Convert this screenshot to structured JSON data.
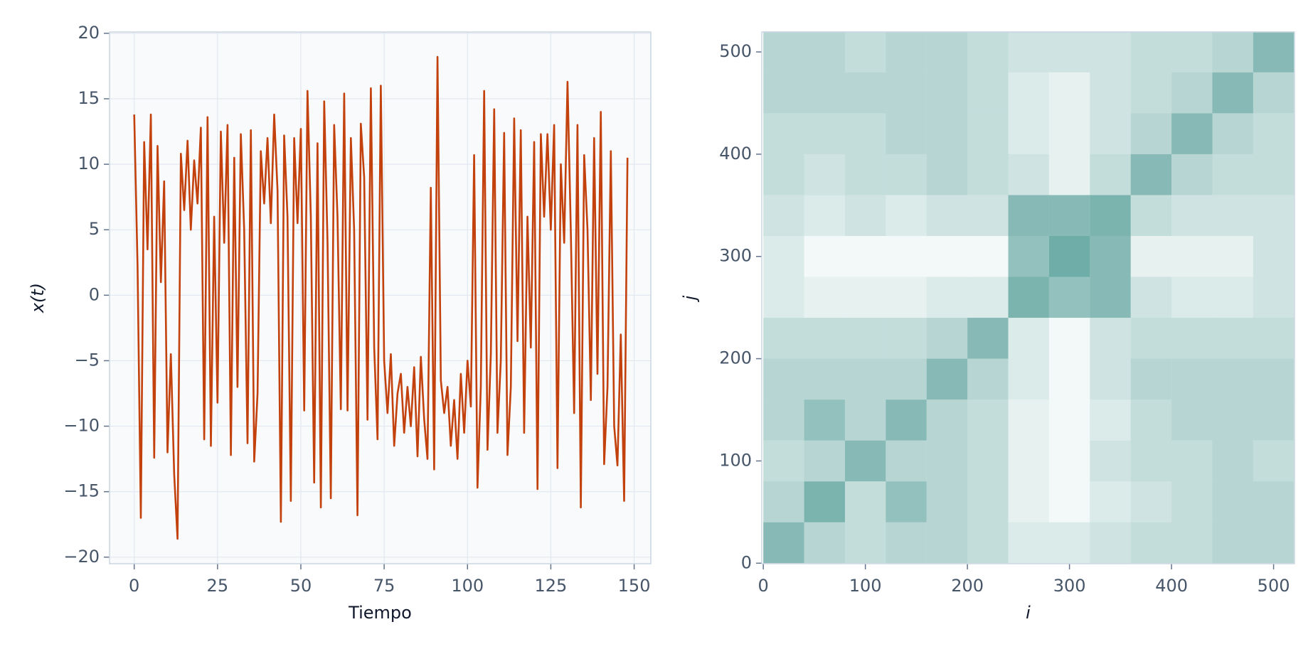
{
  "chart_data": [
    {
      "type": "line",
      "xlabel": "Tiempo",
      "ylabel": "x(t)",
      "color": "#c2410c",
      "grid": true,
      "xlim": [
        -7.4,
        155
      ],
      "ylim": [
        -20.5,
        20.1
      ],
      "xticks": [
        0,
        25,
        50,
        75,
        100,
        125,
        150
      ],
      "yticks": [
        {
          "value": -20,
          "label": "−20"
        },
        {
          "value": -15,
          "label": "−15"
        },
        {
          "value": -10,
          "label": "−10"
        },
        {
          "value": -5,
          "label": "−5"
        },
        0,
        5,
        10,
        15,
        20
      ],
      "x": [
        0,
        1,
        2,
        3,
        4,
        5,
        6,
        7,
        8,
        9,
        10,
        11,
        12,
        13,
        14,
        15,
        16,
        17,
        18,
        19,
        20,
        21,
        22,
        23,
        24,
        25,
        26,
        27,
        28,
        29,
        30,
        31,
        32,
        33,
        34,
        35,
        36,
        37,
        38,
        39,
        40,
        41,
        42,
        43,
        44,
        45,
        46,
        47,
        48,
        49,
        50,
        51,
        52,
        53,
        54,
        55,
        56,
        57,
        58,
        59,
        60,
        61,
        62,
        63,
        64,
        65,
        66,
        67,
        68,
        69,
        70,
        71,
        72,
        73,
        74,
        75,
        76,
        77,
        78,
        79,
        80,
        81,
        82,
        83,
        84,
        85,
        86,
        87,
        88,
        89,
        90,
        91,
        92,
        93,
        94,
        95,
        96,
        97,
        98,
        99,
        100,
        101,
        102,
        103,
        104,
        105,
        106,
        107,
        108,
        109,
        110,
        111,
        112,
        113,
        114,
        115,
        116,
        117,
        118,
        119,
        120,
        121,
        122,
        123,
        124,
        125,
        126,
        127,
        128,
        129,
        130,
        131,
        132,
        133,
        134,
        135,
        136,
        137,
        138,
        139,
        140,
        141,
        142,
        143,
        144,
        145,
        146,
        147,
        148
      ],
      "values": [
        13.8,
        2.2,
        -17,
        11.7,
        3.5,
        13.8,
        -12.4,
        11.4,
        1,
        8.7,
        -12,
        -4.5,
        -13.7,
        -18.6,
        10.8,
        6.5,
        11.8,
        5,
        10.3,
        7,
        12.8,
        -11,
        13.6,
        -11.5,
        6,
        -8.2,
        12.5,
        4,
        13,
        -12.2,
        10.5,
        -7,
        12.3,
        5,
        -11.3,
        12.6,
        -12.7,
        -7.5,
        11,
        7,
        12,
        5.5,
        13.8,
        8,
        -17.3,
        12.2,
        6,
        -15.7,
        12,
        5.5,
        12.7,
        -8.8,
        15.6,
        6,
        -14.3,
        11.6,
        -16.2,
        14.8,
        4,
        -15.5,
        13,
        6,
        -8.7,
        15.4,
        -8.8,
        12,
        5,
        -16.8,
        13.1,
        9,
        -9.5,
        15.8,
        -4,
        -11,
        16,
        -5,
        -9,
        -4.5,
        -11.5,
        -7.5,
        -6,
        -10.5,
        -7,
        -10,
        -5.5,
        -12.3,
        -4.7,
        -9.5,
        -12.5,
        8.2,
        -13.3,
        18.2,
        -6.5,
        -9,
        -7,
        -11.5,
        -8,
        -12.5,
        -6,
        -10.5,
        -5,
        -8.5,
        10.7,
        -14.7,
        -7,
        15.6,
        -11.8,
        -4.5,
        14.2,
        -10.5,
        -5,
        12.4,
        -12.2,
        -7,
        13.5,
        -3.5,
        12.6,
        -10.5,
        6,
        -4,
        11.7,
        -14.8,
        12.3,
        6,
        12.3,
        5,
        13,
        -13.2,
        10,
        4,
        16.3,
        5,
        -9,
        13,
        -16.2,
        10.7,
        5,
        -8,
        12,
        -6,
        14,
        -12.9,
        -7,
        11,
        -10,
        -13,
        -3,
        -15.7,
        10.5
      ]
    },
    {
      "type": "heatmap",
      "xlabel": "i",
      "ylabel": "j",
      "color": "#0f766e",
      "xlim": [
        -1.5,
        520.5
      ],
      "ylim": [
        -0.5,
        519.5
      ],
      "xticks": [
        0,
        100,
        200,
        300,
        400,
        500
      ],
      "yticks": [
        0,
        100,
        200,
        300,
        400,
        500
      ],
      "xbins": [
        0,
        40,
        80,
        120,
        160,
        200,
        240,
        280,
        320,
        360,
        400,
        440,
        480,
        520
      ],
      "ybins": [
        0,
        40,
        80,
        120,
        160,
        200,
        240,
        280,
        320,
        360,
        400,
        440,
        480,
        520
      ],
      "values": [
        [
          0.5,
          0.3,
          0.25,
          0.3,
          0.3,
          0.25,
          0.15,
          0.15,
          0.2,
          0.25,
          0.25,
          0.3,
          0.3
        ],
        [
          0.3,
          0.55,
          0.25,
          0.45,
          0.3,
          0.25,
          0.1,
          0.05,
          0.15,
          0.2,
          0.25,
          0.3,
          0.3
        ],
        [
          0.25,
          0.3,
          0.5,
          0.3,
          0.3,
          0.25,
          0.1,
          0.05,
          0.2,
          0.25,
          0.25,
          0.3,
          0.25
        ],
        [
          0.3,
          0.45,
          0.3,
          0.5,
          0.3,
          0.25,
          0.1,
          0.05,
          0.15,
          0.25,
          0.3,
          0.3,
          0.3
        ],
        [
          0.3,
          0.3,
          0.3,
          0.3,
          0.5,
          0.3,
          0.15,
          0.05,
          0.2,
          0.3,
          0.3,
          0.3,
          0.3
        ],
        [
          0.25,
          0.25,
          0.25,
          0.25,
          0.3,
          0.5,
          0.15,
          0.05,
          0.2,
          0.25,
          0.25,
          0.25,
          0.25
        ],
        [
          0.15,
          0.1,
          0.1,
          0.1,
          0.15,
          0.15,
          0.55,
          0.45,
          0.5,
          0.2,
          0.15,
          0.15,
          0.2
        ],
        [
          0.15,
          0.05,
          0.05,
          0.05,
          0.05,
          0.05,
          0.45,
          0.6,
          0.5,
          0.1,
          0.1,
          0.1,
          0.2
        ],
        [
          0.2,
          0.15,
          0.2,
          0.15,
          0.2,
          0.2,
          0.5,
          0.5,
          0.55,
          0.25,
          0.2,
          0.2,
          0.2
        ],
        [
          0.25,
          0.2,
          0.25,
          0.25,
          0.3,
          0.25,
          0.2,
          0.1,
          0.25,
          0.5,
          0.3,
          0.25,
          0.25
        ],
        [
          0.25,
          0.25,
          0.25,
          0.3,
          0.3,
          0.25,
          0.15,
          0.1,
          0.2,
          0.3,
          0.5,
          0.3,
          0.25
        ],
        [
          0.3,
          0.3,
          0.3,
          0.3,
          0.3,
          0.25,
          0.15,
          0.1,
          0.2,
          0.25,
          0.3,
          0.5,
          0.3
        ],
        [
          0.3,
          0.3,
          0.25,
          0.3,
          0.3,
          0.25,
          0.2,
          0.2,
          0.2,
          0.25,
          0.25,
          0.3,
          0.5
        ]
      ]
    }
  ]
}
